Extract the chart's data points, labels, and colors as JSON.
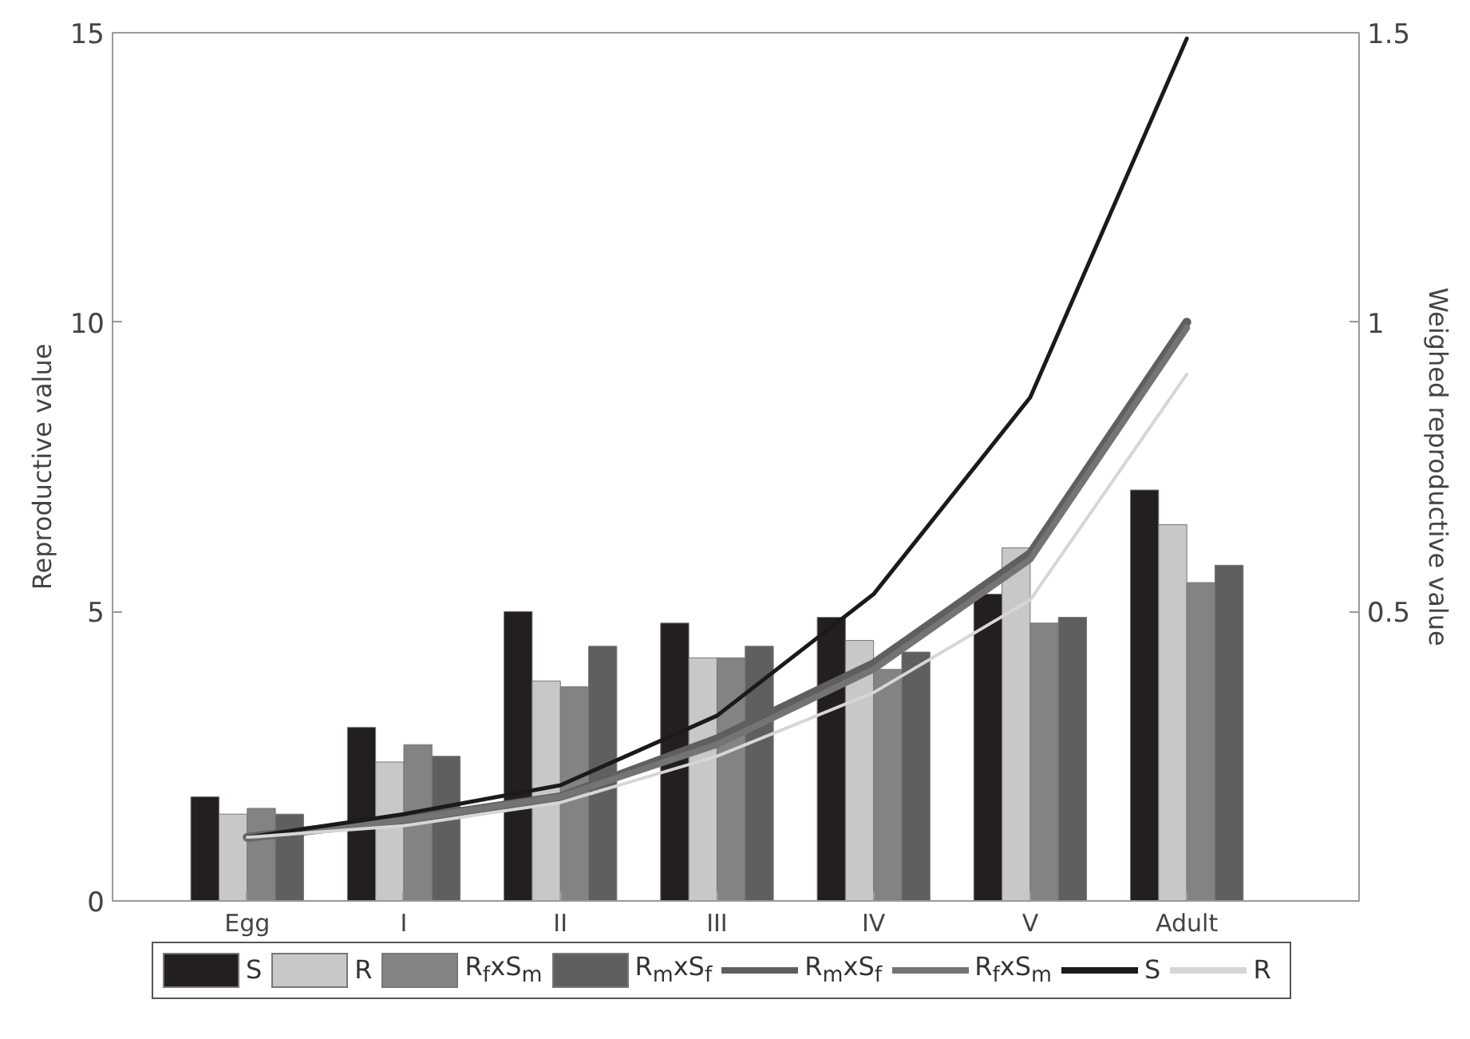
{
  "chart_data": {
    "type": "bar",
    "ylabel": "Reproductive value",
    "y2label": "Weighed reproductive value",
    "categories": [
      "Egg",
      "I",
      "II",
      "III",
      "IV",
      "V",
      "Adult"
    ],
    "ylim": [
      0,
      15
    ],
    "yticks": [
      0,
      5,
      10,
      15
    ],
    "y2lim": [
      0,
      1.5
    ],
    "y2ticks": [
      0.5,
      1,
      1.5
    ],
    "series": [
      {
        "name": "S",
        "color": "#231f20",
        "values": [
          1.8,
          3.0,
          5.0,
          4.8,
          4.9,
          5.3,
          7.1
        ]
      },
      {
        "name": "R",
        "color": "#c8c8c8",
        "values": [
          1.5,
          2.4,
          3.8,
          4.2,
          4.5,
          6.1,
          6.5
        ]
      },
      {
        "name": "R$_{f}$xS$_{m}$",
        "color": "#838383",
        "values": [
          1.6,
          2.7,
          3.7,
          4.2,
          4.0,
          4.8,
          5.5
        ]
      },
      {
        "name": "R$_{m}$xS$_{f}$",
        "color": "#5f5f5f",
        "values": [
          1.5,
          2.5,
          4.4,
          4.4,
          4.3,
          4.9,
          5.8
        ]
      },
      {
        "name": "R$_{m}$xS$_{f}$",
        "type": "line",
        "axis": "y2",
        "color": "#5f5f5f",
        "values": [
          0.11,
          0.14,
          0.18,
          0.28,
          0.41,
          0.6,
          1.0
        ]
      },
      {
        "name": "R$_{f}$xS$_{m}$",
        "type": "line",
        "axis": "y2",
        "color": "#747474",
        "values": [
          0.11,
          0.14,
          0.18,
          0.27,
          0.4,
          0.59,
          0.99
        ]
      },
      {
        "name": "S",
        "type": "line",
        "axis": "y2",
        "color": "#1a1a1a",
        "values": [
          0.11,
          0.15,
          0.2,
          0.32,
          0.53,
          0.87,
          1.49
        ]
      },
      {
        "name": "R",
        "type": "line",
        "axis": "y2",
        "color": "#d6d6d6",
        "values": [
          0.11,
          0.13,
          0.17,
          0.25,
          0.36,
          0.52,
          0.91
        ]
      }
    ],
    "grid": false,
    "legend": "bottom"
  }
}
